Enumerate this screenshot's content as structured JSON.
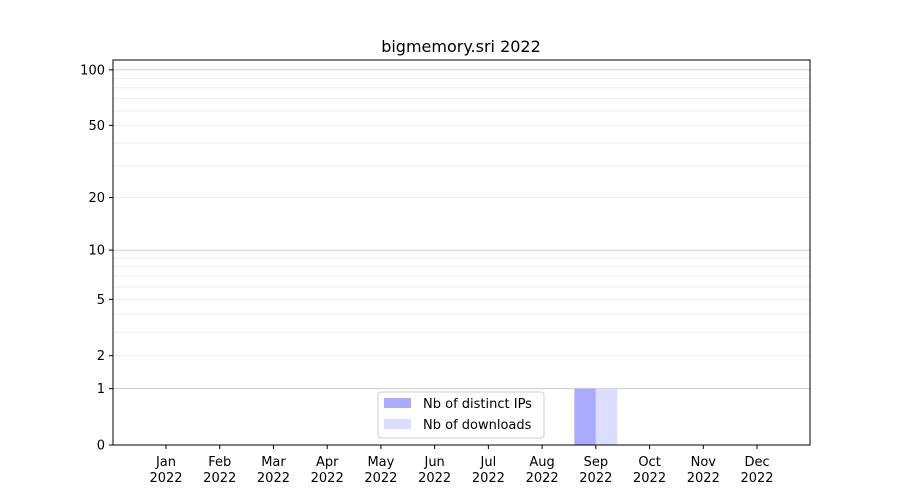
{
  "chart_data": {
    "type": "bar",
    "title": "bigmemory.sri 2022",
    "xlabel": "",
    "ylabel": "",
    "yscale": "log(1+y)",
    "ylim": [
      0,
      113
    ],
    "ytick_labels": [
      "0",
      "1",
      "2",
      "5",
      "10",
      "20",
      "50",
      "100"
    ],
    "ytick_values": [
      0,
      1,
      2,
      5,
      10,
      20,
      50,
      100
    ],
    "grid": true,
    "categories": [
      "Jan\n2022",
      "Feb\n2022",
      "Mar\n2022",
      "Apr\n2022",
      "May\n2022",
      "Jun\n2022",
      "Jul\n2022",
      "Aug\n2022",
      "Sep\n2022",
      "Oct\n2022",
      "Nov\n2022",
      "Dec\n2022"
    ],
    "series": [
      {
        "name": "Nb of distinct IPs",
        "color": "#aaaaff",
        "values": [
          0,
          0,
          0,
          0,
          0,
          0,
          0,
          0,
          1,
          0,
          0,
          0
        ]
      },
      {
        "name": "Nb of downloads",
        "color": "#ddddff",
        "values": [
          0,
          0,
          0,
          0,
          0,
          0,
          0,
          0,
          1,
          0,
          0,
          0
        ]
      }
    ],
    "legend_position": "bottom-center"
  }
}
